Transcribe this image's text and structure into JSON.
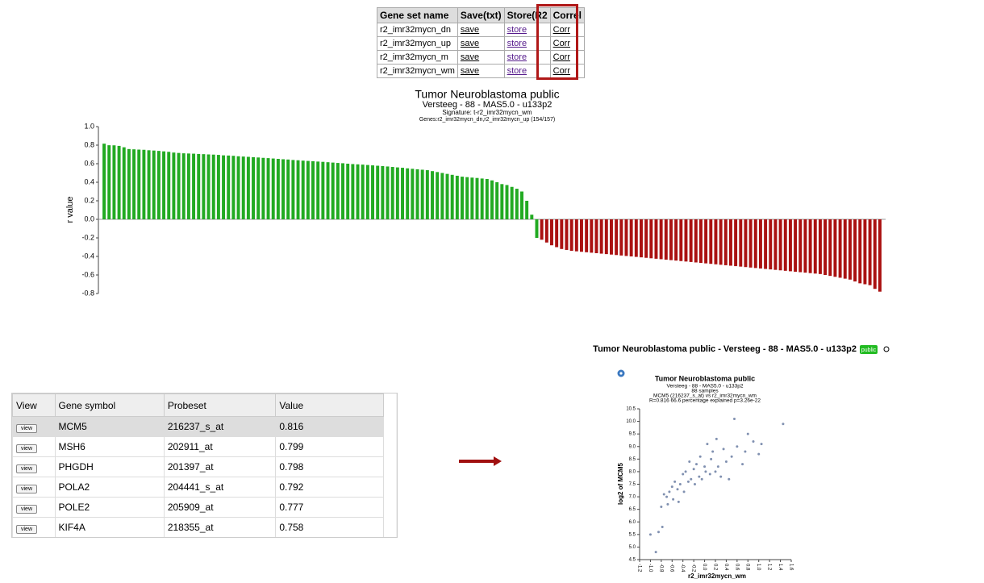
{
  "gene_set_table": {
    "headers": [
      "Gene set name",
      "Save(txt)",
      "Store(R2",
      "Correl"
    ],
    "rows": [
      [
        "r2_imr32mycn_dn",
        "save",
        "store",
        "Corr"
      ],
      [
        "r2_imr32mycn_up",
        "save",
        "store",
        "Corr"
      ],
      [
        "r2_imr32mycn_m",
        "save",
        "store",
        "Corr"
      ],
      [
        "r2_imr32mycn_wm",
        "save",
        "store",
        "Corr"
      ]
    ]
  },
  "bar_chart": {
    "type": "bar",
    "title": "Tumor Neuroblastoma public",
    "subtitle": "Versteeg - 88 - MAS5.0 - u133p2",
    "signature": "Signature: t-r2_imr32mycn_wm",
    "genes": "Genes:r2_imr32mycn_dn,r2_imr32mycn_up (154/157)",
    "ylabel": "r value",
    "ylim": [
      -0.8,
      1.0
    ],
    "yticks": [
      {
        "value": 1,
        "label": "1.0"
      },
      0.8,
      0.6,
      0.4,
      0.2,
      {
        "value": 0,
        "label": "0.0"
      },
      -0.2,
      -0.4,
      -0.6,
      -0.8
    ],
    "series": [
      {
        "color": "#22aa22",
        "values": [
          0.816,
          0.799,
          0.798,
          0.792,
          0.777,
          0.758,
          0.755,
          0.752,
          0.75,
          0.745,
          0.742,
          0.738,
          0.733,
          0.728,
          0.72,
          0.716,
          0.712,
          0.71,
          0.708,
          0.705,
          0.703,
          0.7,
          0.698,
          0.695,
          0.69,
          0.688,
          0.685,
          0.68,
          0.677,
          0.674,
          0.67,
          0.667,
          0.663,
          0.66,
          0.656,
          0.652,
          0.648,
          0.645,
          0.64,
          0.637,
          0.633,
          0.63,
          0.627,
          0.623,
          0.62,
          0.616,
          0.612,
          0.608,
          0.605,
          0.6,
          0.596,
          0.593,
          0.59,
          0.586,
          0.582,
          0.578,
          0.574,
          0.57,
          0.565,
          0.56,
          0.556,
          0.55,
          0.545,
          0.54,
          0.535,
          0.53,
          0.52,
          0.51,
          0.5,
          0.49,
          0.48,
          0.47,
          0.46,
          0.455,
          0.45,
          0.446,
          0.44,
          0.435,
          0.42,
          0.4,
          0.38,
          0.37,
          0.35,
          0.33,
          0.3,
          0.2,
          0.05,
          -0.2
        ]
      },
      {
        "color": "#aa1111",
        "values": [
          -0.22,
          -0.25,
          -0.28,
          -0.3,
          -0.32,
          -0.33,
          -0.34,
          -0.345,
          -0.35,
          -0.355,
          -0.36,
          -0.365,
          -0.37,
          -0.375,
          -0.38,
          -0.385,
          -0.39,
          -0.395,
          -0.4,
          -0.405,
          -0.41,
          -0.415,
          -0.42,
          -0.425,
          -0.43,
          -0.435,
          -0.44,
          -0.445,
          -0.45,
          -0.455,
          -0.46,
          -0.465,
          -0.47,
          -0.475,
          -0.48,
          -0.485,
          -0.49,
          -0.495,
          -0.5,
          -0.505,
          -0.51,
          -0.515,
          -0.52,
          -0.525,
          -0.53,
          -0.535,
          -0.54,
          -0.545,
          -0.55,
          -0.555,
          -0.56,
          -0.565,
          -0.57,
          -0.575,
          -0.58,
          -0.585,
          -0.59,
          -0.6,
          -0.61,
          -0.62,
          -0.63,
          -0.64,
          -0.65,
          -0.67,
          -0.69,
          -0.7,
          -0.71,
          -0.75,
          -0.78
        ]
      }
    ]
  },
  "dataset_label": "Tumor Neuroblastoma public - Versteeg - 88 - MAS5.0 - u133p2",
  "badge": "public",
  "result_table": {
    "headers": [
      "View",
      "Gene symbol",
      "Probeset",
      "Value"
    ],
    "button": "view",
    "rows": [
      [
        "MCM5",
        "216237_s_at",
        0.816
      ],
      [
        "MSH6",
        "202911_at",
        0.799
      ],
      [
        "PHGDH",
        "201397_at",
        0.798
      ],
      [
        "POLA2",
        "204441_s_at",
        0.792
      ],
      [
        "POLE2",
        "205909_at",
        0.777
      ],
      [
        "KIF4A",
        "218355_at",
        0.758
      ]
    ]
  },
  "scatter": {
    "type": "scatter",
    "title": "Tumor Neuroblastoma public",
    "subtitle": "Versteeg - 88 - MAS5.0 - u133p2",
    "samples": "88 samples",
    "stats": "MCM5 (216237_s_at) vs r2_imr32mycn_wm",
    "stats2": "R=0.816 66.6 percentage explained p=3.26e-22",
    "xlabel": "r2_imr32mycn_wm",
    "ylabel": "log2 of MCM5",
    "color": "#8090b0",
    "xlim": [
      -1.2,
      1.6
    ],
    "xticks": [
      -1.2,
      {
        "value": -1,
        "label": "-1.0"
      },
      -0.8,
      -0.6,
      -0.4,
      -0.2,
      {
        "value": 0,
        "label": "0.0"
      },
      0.2,
      0.4,
      0.6,
      0.8,
      {
        "value": 1,
        "label": "1.0"
      },
      1.2,
      1.4,
      1.6
    ],
    "ylim": [
      4.5,
      10.5
    ],
    "yticks": [
      4.5,
      {
        "value": 5,
        "label": "5.0"
      },
      5.5,
      {
        "value": 6,
        "label": "6.0"
      },
      6.5,
      {
        "value": 7,
        "label": "7.0"
      },
      7.5,
      {
        "value": 8,
        "label": "8.0"
      },
      8.5,
      {
        "value": 9,
        "label": "9.0"
      },
      9.5,
      {
        "value": 10,
        "label": "10.0"
      },
      10.5
    ],
    "x": [
      -1.0,
      -0.9,
      -0.85,
      -0.8,
      -0.78,
      -0.75,
      -0.7,
      -0.68,
      -0.65,
      -0.6,
      -0.58,
      -0.55,
      -0.5,
      -0.48,
      -0.45,
      -0.4,
      -0.38,
      -0.35,
      -0.3,
      -0.28,
      -0.25,
      -0.2,
      -0.18,
      -0.15,
      -0.1,
      -0.08,
      -0.05,
      0.0,
      0.02,
      0.05,
      0.1,
      0.12,
      0.15,
      0.2,
      0.22,
      0.25,
      0.3,
      0.35,
      0.4,
      0.45,
      0.5,
      0.55,
      0.6,
      0.7,
      0.75,
      0.8,
      0.9,
      1.0,
      1.05,
      1.45
    ],
    "y": [
      5.5,
      4.8,
      5.6,
      6.6,
      5.8,
      7.1,
      7.0,
      6.7,
      7.2,
      7.4,
      6.9,
      7.6,
      7.3,
      6.8,
      7.5,
      7.9,
      7.2,
      8.0,
      7.6,
      8.4,
      7.7,
      8.1,
      7.5,
      8.3,
      7.8,
      8.6,
      7.7,
      8.2,
      8.0,
      9.1,
      7.9,
      8.5,
      8.8,
      8.0,
      9.3,
      8.2,
      7.8,
      8.9,
      8.4,
      7.7,
      8.6,
      10.1,
      9.0,
      8.3,
      8.8,
      9.5,
      9.2,
      8.7,
      9.1,
      9.9
    ]
  }
}
